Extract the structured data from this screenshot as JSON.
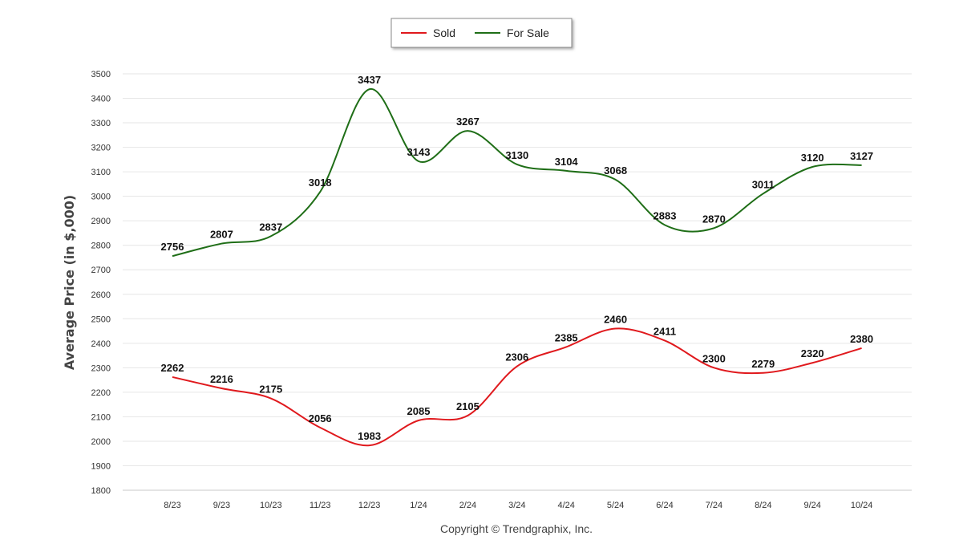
{
  "chart_data": {
    "type": "line",
    "title": "",
    "xlabel": "",
    "ylabel": "Average Price (in $,000)",
    "categories": [
      "8/23",
      "9/23",
      "10/23",
      "11/23",
      "12/23",
      "1/24",
      "2/24",
      "3/24",
      "4/24",
      "5/24",
      "6/24",
      "7/24",
      "8/24",
      "9/24",
      "10/24"
    ],
    "ylim": [
      1800,
      3500
    ],
    "yticks": [
      1800,
      1900,
      2000,
      2100,
      2200,
      2300,
      2400,
      2500,
      2600,
      2700,
      2800,
      2900,
      3000,
      3100,
      3200,
      3300,
      3400,
      3500
    ],
    "grid": true,
    "legend_position": "top-center",
    "series": [
      {
        "name": "Sold",
        "color": "#e0191d",
        "values": [
          2262,
          2216,
          2175,
          2056,
          1983,
          2085,
          2105,
          2306,
          2385,
          2460,
          2411,
          2300,
          2279,
          2320,
          2380
        ]
      },
      {
        "name": "For Sale",
        "color": "#1f6e17",
        "values": [
          2756,
          2807,
          2837,
          3018,
          3437,
          3143,
          3267,
          3130,
          3104,
          3068,
          2883,
          2870,
          3011,
          3120,
          3127
        ]
      }
    ],
    "credit": "Copyright © Trendgraphix, Inc."
  }
}
